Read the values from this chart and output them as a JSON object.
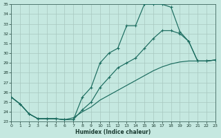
{
  "xlabel": "Humidex (Indice chaleur)",
  "xlim": [
    0,
    23
  ],
  "ylim": [
    23,
    35
  ],
  "xticks": [
    0,
    1,
    2,
    3,
    4,
    5,
    6,
    7,
    8,
    9,
    10,
    11,
    12,
    13,
    14,
    15,
    16,
    17,
    18,
    19,
    20,
    21,
    22,
    23
  ],
  "yticks": [
    23,
    24,
    25,
    26,
    27,
    28,
    29,
    30,
    31,
    32,
    33,
    34,
    35
  ],
  "bg_color": "#c5e8e0",
  "line_color": "#1a6b5e",
  "line1_x": [
    0,
    1,
    2,
    3,
    4,
    5,
    6,
    7,
    8,
    9,
    10,
    11,
    12,
    13,
    14,
    15,
    16,
    17,
    18,
    19,
    20,
    21,
    22,
    23
  ],
  "line1_y": [
    25.5,
    24.8,
    23.8,
    23.3,
    23.3,
    23.3,
    23.2,
    23.2,
    25.5,
    26.5,
    29.0,
    30.0,
    30.5,
    32.8,
    32.8,
    35.0,
    35.0,
    35.0,
    34.7,
    32.2,
    31.2,
    29.2,
    29.2,
    29.3
  ],
  "line2_x": [
    0,
    1,
    2,
    3,
    4,
    5,
    6,
    7,
    8,
    9,
    10,
    11,
    12,
    13,
    14,
    15,
    16,
    17,
    18,
    19,
    20,
    21,
    22,
    23
  ],
  "line2_y": [
    25.5,
    24.8,
    23.8,
    23.3,
    23.3,
    23.3,
    23.2,
    23.2,
    24.2,
    25.0,
    26.5,
    27.5,
    28.5,
    29.0,
    29.5,
    30.5,
    31.5,
    32.3,
    32.3,
    32.0,
    31.2,
    29.2,
    29.2,
    29.3
  ],
  "line3_x": [
    0,
    1,
    2,
    3,
    4,
    5,
    6,
    7,
    8,
    9,
    10,
    11,
    12,
    13,
    14,
    15,
    16,
    17,
    18,
    19,
    20,
    21,
    22,
    23
  ],
  "line3_y": [
    25.5,
    24.8,
    23.8,
    23.3,
    23.3,
    23.3,
    23.2,
    23.4,
    24.0,
    24.5,
    25.2,
    25.7,
    26.2,
    26.7,
    27.2,
    27.7,
    28.2,
    28.6,
    28.9,
    29.1,
    29.2,
    29.2,
    29.2,
    29.3
  ]
}
